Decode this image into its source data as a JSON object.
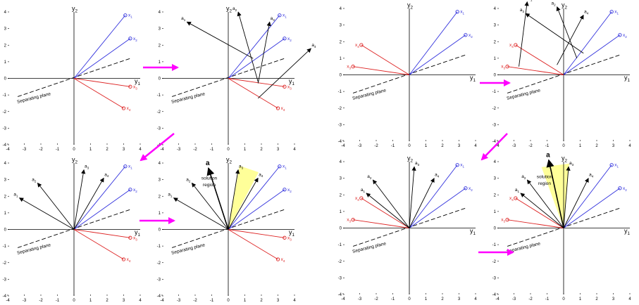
{
  "axis_labels": {
    "y1": "y",
    "y1_sub": "1",
    "y2": "y",
    "y2_sub": "2"
  },
  "ticks": {
    "x": [
      "-4",
      "-3",
      "-2",
      "-1",
      "0",
      "1",
      "2",
      "3",
      "4"
    ],
    "y": [
      "4",
      "3",
      "2",
      "1",
      "0",
      "-1",
      "-2",
      "-3",
      "-4"
    ]
  },
  "separating_plane_label": "Separating plane",
  "solution_region_label_1": "solution",
  "solution_region_label_2": "region",
  "solution_vector_label": "a",
  "colors": {
    "class1": "#3333dd",
    "class2": "#dd2222",
    "weights": "#000000",
    "arrow": "#ff00ff",
    "region": "#ffff99"
  },
  "panels": [
    {
      "name": "left-top-left",
      "samples": [
        {
          "label": "x",
          "sub": "1",
          "x": 3.1,
          "y": 3.8,
          "cls": 1
        },
        {
          "label": "x",
          "sub": "2",
          "x": 3.4,
          "y": 2.4,
          "cls": 1
        },
        {
          "label": "x",
          "sub": "3",
          "x": 3.4,
          "y": -0.5,
          "cls": 2
        },
        {
          "label": "x",
          "sub": "4",
          "x": 3.0,
          "y": -1.8,
          "cls": 2
        }
      ],
      "weights": []
    },
    {
      "name": "left-top-right",
      "samples": [
        {
          "label": "x",
          "sub": "1",
          "x": 3.1,
          "y": 3.8,
          "cls": 1
        },
        {
          "label": "x",
          "sub": "2",
          "x": 3.4,
          "y": 2.4,
          "cls": 1
        },
        {
          "label": "x",
          "sub": "3",
          "x": 3.4,
          "y": -0.5,
          "cls": 2
        },
        {
          "label": "x",
          "sub": "4",
          "x": 3.0,
          "y": -1.8,
          "cls": 2
        }
      ],
      "weights": [
        {
          "label": "a",
          "sub": "1",
          "x0": 1.5,
          "y0": 1.2,
          "x1": -2.5,
          "y1": 3.4
        },
        {
          "label": "a",
          "sub": "2",
          "x0": 1.8,
          "y0": -0.2,
          "x1": 0.6,
          "y1": 4.0
        },
        {
          "label": "a",
          "sub": "3",
          "x0": 1.8,
          "y0": -0.3,
          "x1": 2.5,
          "y1": 3.4
        },
        {
          "label": "a",
          "sub": "4",
          "x0": 1.8,
          "y0": -1.2,
          "x1": 5.0,
          "y1": 1.8
        }
      ]
    },
    {
      "name": "left-bottom-left",
      "samples": [
        {
          "label": "x",
          "sub": "1",
          "x": 3.1,
          "y": 3.8,
          "cls": 1
        },
        {
          "label": "x",
          "sub": "2",
          "x": 3.4,
          "y": 2.4,
          "cls": 1
        },
        {
          "label": "x",
          "sub": "3",
          "x": 3.4,
          "y": -0.5,
          "cls": 2
        },
        {
          "label": "x",
          "sub": "4",
          "x": 3.0,
          "y": -1.8,
          "cls": 2
        }
      ],
      "weights": [
        {
          "label": "a",
          "sub": "1",
          "x0": 0,
          "y0": 0,
          "x1": -3.3,
          "y1": 1.9
        },
        {
          "label": "a",
          "sub": "2",
          "x0": 0,
          "y0": 0,
          "x1": -2.2,
          "y1": 2.8
        },
        {
          "label": "a",
          "sub": "3",
          "x0": 0,
          "y0": 0,
          "x1": 0.6,
          "y1": 3.6
        },
        {
          "label": "a",
          "sub": "4",
          "x0": 0,
          "y0": 0,
          "x1": 1.8,
          "y1": 3.1
        }
      ]
    },
    {
      "name": "left-bottom-right",
      "region": {
        "a1": 62,
        "a2": 80,
        "r": 3.9
      },
      "solution": {
        "x1": -1.2,
        "y1": 3.7
      },
      "samples": [
        {
          "label": "x",
          "sub": "1",
          "x": 3.1,
          "y": 3.8,
          "cls": 1
        },
        {
          "label": "x",
          "sub": "2",
          "x": 3.4,
          "y": 2.4,
          "cls": 1
        },
        {
          "label": "x",
          "sub": "3",
          "x": 3.4,
          "y": -0.5,
          "cls": 2
        },
        {
          "label": "x",
          "sub": "4",
          "x": 3.0,
          "y": -1.8,
          "cls": 2
        }
      ],
      "weights": [
        {
          "label": "a",
          "sub": "1",
          "x0": 0,
          "y0": 0,
          "x1": -3.3,
          "y1": 1.9
        },
        {
          "label": "a",
          "sub": "2",
          "x0": 0,
          "y0": 0,
          "x1": -2.2,
          "y1": 2.8
        },
        {
          "label": "a",
          "sub": "3",
          "x0": 0,
          "y0": 0,
          "x1": 0.6,
          "y1": 3.6
        },
        {
          "label": "a",
          "sub": "4",
          "x0": 0,
          "y0": 0,
          "x1": 1.8,
          "y1": 3.1
        }
      ]
    },
    {
      "name": "right-top-left",
      "samples": [
        {
          "label": "x",
          "sub": "1",
          "x": 2.9,
          "y": 3.8,
          "cls": 1
        },
        {
          "label": "x",
          "sub": "2",
          "x": 3.4,
          "y": 2.4,
          "cls": 1
        },
        {
          "label": "x",
          "sub": "3",
          "x": -3.4,
          "y": 0.5,
          "cls": 2
        },
        {
          "label": "x",
          "sub": "4",
          "x": -2.9,
          "y": 1.8,
          "cls": 2
        }
      ],
      "weights": []
    },
    {
      "name": "right-top-right",
      "samples": [
        {
          "label": "x",
          "sub": "1",
          "x": 2.9,
          "y": 3.8,
          "cls": 1
        },
        {
          "label": "x",
          "sub": "2",
          "x": 3.4,
          "y": 2.4,
          "cls": 1
        },
        {
          "label": "x",
          "sub": "3",
          "x": -3.4,
          "y": 0.5,
          "cls": 2
        },
        {
          "label": "x",
          "sub": "4",
          "x": -2.9,
          "y": 1.8,
          "cls": 2
        }
      ],
      "weights": [
        {
          "label": "a",
          "sub": "1",
          "x0": -2.7,
          "y0": 0.5,
          "x1": -2.2,
          "y1": 4.4
        },
        {
          "label": "a",
          "sub": "2",
          "x0": 0.8,
          "y0": 1.0,
          "x1": -0.4,
          "y1": 4.1
        },
        {
          "label": "a",
          "sub": "3",
          "x0": 1.2,
          "y0": 1.3,
          "x1": -2.3,
          "y1": 3.7
        },
        {
          "label": "a",
          "sub": "4",
          "x0": -0.4,
          "y0": 0.6,
          "x1": 1.2,
          "y1": 3.6
        }
      ]
    },
    {
      "name": "right-bottom-left",
      "samples": [
        {
          "label": "x",
          "sub": "1",
          "x": 2.9,
          "y": 3.8,
          "cls": 1
        },
        {
          "label": "x",
          "sub": "2",
          "x": 3.4,
          "y": 2.4,
          "cls": 1
        },
        {
          "label": "x",
          "sub": "3",
          "x": -3.4,
          "y": 0.5,
          "cls": 2
        },
        {
          "label": "x",
          "sub": "4",
          "x": -2.9,
          "y": 1.8,
          "cls": 2
        }
      ],
      "weights": [
        {
          "label": "a",
          "sub": "1",
          "x0": 0,
          "y0": 0,
          "x1": -2.6,
          "y1": 2.1
        },
        {
          "label": "a",
          "sub": "2",
          "x0": 0,
          "y0": 0,
          "x1": -2.2,
          "y1": 2.9
        },
        {
          "label": "a",
          "sub": "3",
          "x0": 0,
          "y0": 0,
          "x1": 0.3,
          "y1": 3.7
        },
        {
          "label": "a",
          "sub": "4",
          "x0": 0,
          "y0": 0,
          "x1": 1.5,
          "y1": 3.0
        }
      ]
    },
    {
      "name": "right-bottom-right",
      "region": {
        "a1": 85,
        "a2": 110,
        "r": 3.9
      },
      "solution": {
        "x1": -0.9,
        "y1": 4.1
      },
      "samples": [
        {
          "label": "x",
          "sub": "1",
          "x": 2.9,
          "y": 3.8,
          "cls": 1
        },
        {
          "label": "x",
          "sub": "2",
          "x": 3.4,
          "y": 2.4,
          "cls": 1
        },
        {
          "label": "x",
          "sub": "3",
          "x": -3.4,
          "y": 0.5,
          "cls": 2
        },
        {
          "label": "x",
          "sub": "4",
          "x": -2.9,
          "y": 1.8,
          "cls": 2
        }
      ],
      "weights": [
        {
          "label": "a",
          "sub": "1",
          "x0": 0,
          "y0": 0,
          "x1": -2.6,
          "y1": 2.1
        },
        {
          "label": "a",
          "sub": "2",
          "x0": 0,
          "y0": 0,
          "x1": -2.2,
          "y1": 2.9
        },
        {
          "label": "a",
          "sub": "3",
          "x0": 0,
          "y0": 0,
          "x1": 0.3,
          "y1": 3.7
        },
        {
          "label": "a",
          "sub": "4",
          "x0": 0,
          "y0": 0,
          "x1": 1.5,
          "y1": 3.0
        }
      ]
    }
  ]
}
